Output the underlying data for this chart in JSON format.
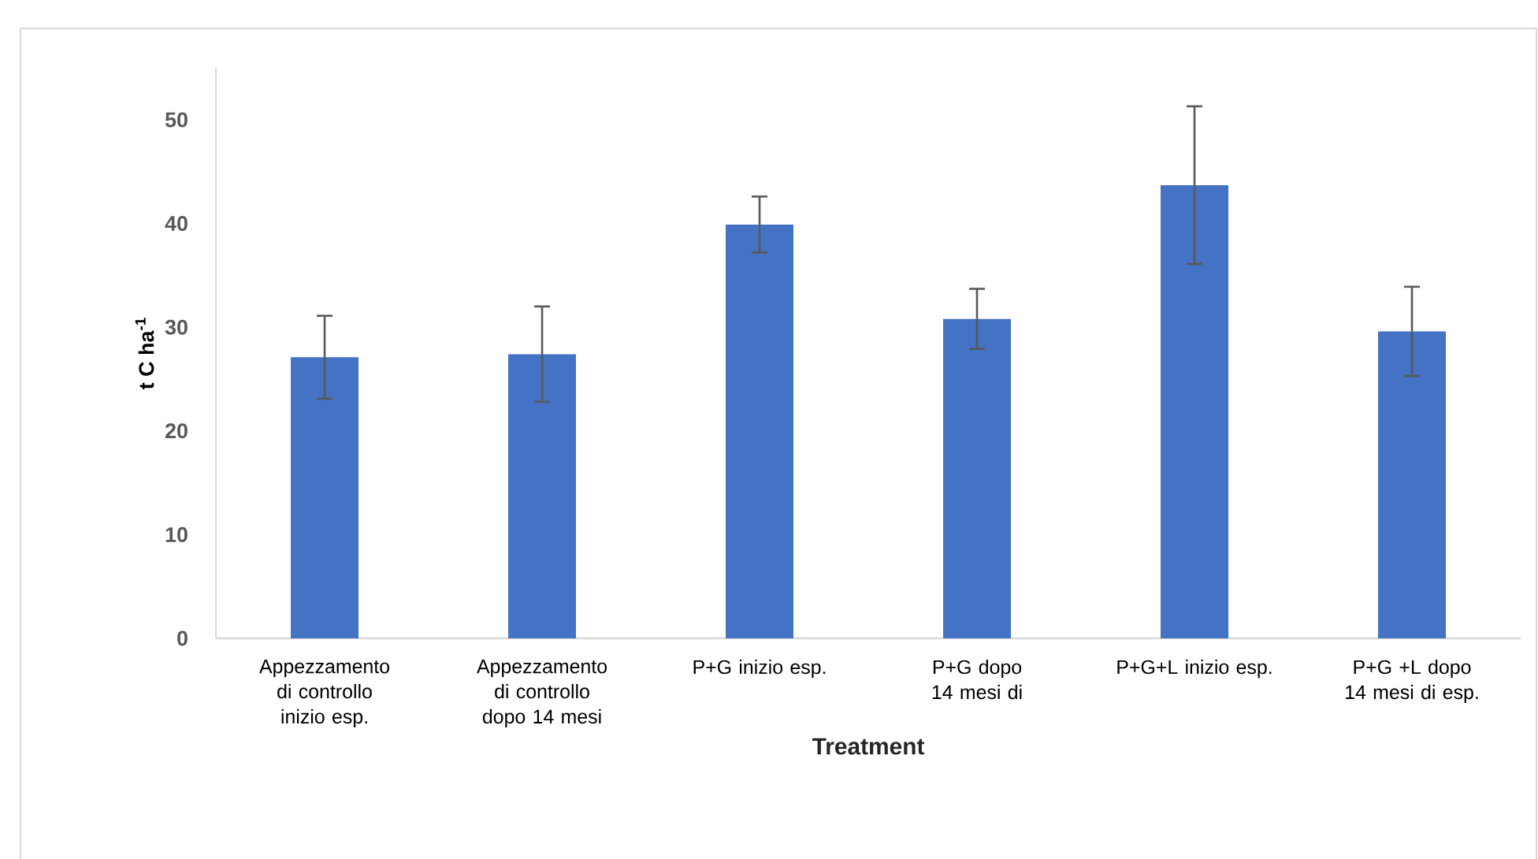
{
  "chart_data": {
    "type": "bar",
    "xlabel": "Treatment",
    "ylabel": "t C ha$^{-1}$",
    "categories": [
      "Appezzamento di controllo inizio esp.",
      "Appezzamento di controllo dopo 14 mesi",
      "P+G inizio esp.",
      "P+G dopo 14 mesi di",
      "P+G+L inizio esp.",
      "P+G +L dopo 14 mesi di esp."
    ],
    "values": [
      27.1,
      27.4,
      39.9,
      30.8,
      43.7,
      29.6
    ],
    "errors": [
      4.0,
      4.6,
      2.7,
      2.9,
      7.6,
      4.3
    ],
    "color": "#4472c4",
    "ylim": [
      0,
      55
    ],
    "yticks": [
      0,
      10,
      20,
      30,
      40,
      50
    ]
  }
}
